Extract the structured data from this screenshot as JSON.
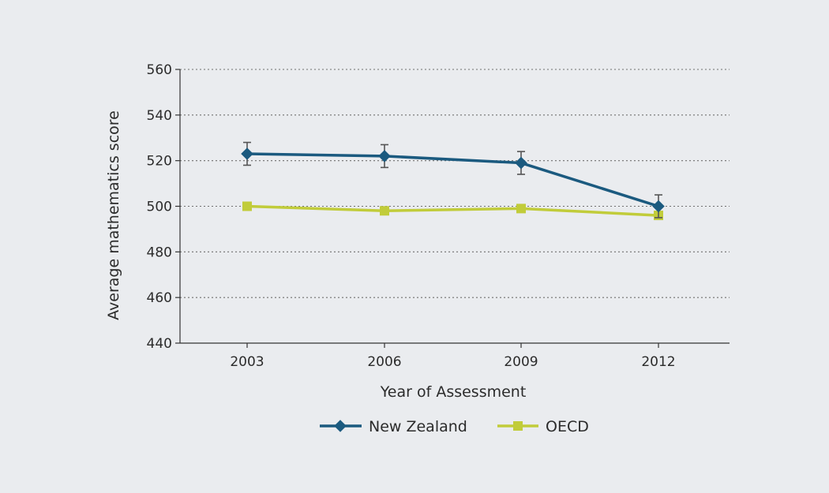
{
  "chart_data": {
    "type": "line",
    "title": "",
    "xlabel": "Year of Assessment",
    "ylabel": "Average mathematics score",
    "categories": [
      "2003",
      "2006",
      "2009",
      "2012"
    ],
    "ylim": [
      440,
      560
    ],
    "yticks": [
      "440",
      "460",
      "480",
      "500",
      "520",
      "540",
      "560"
    ],
    "grid": "horizontal dotted",
    "legend_position": "bottom",
    "series": [
      {
        "name": "New Zealand",
        "values": [
          523,
          522,
          519,
          500
        ],
        "error_low": [
          518,
          517,
          514,
          495
        ],
        "error_high": [
          528,
          527,
          524,
          505
        ],
        "marker": "diamond",
        "color": "#1b5a7f"
      },
      {
        "name": "OECD",
        "values": [
          500,
          498,
          499,
          496
        ],
        "marker": "square",
        "color": "#c1cc3a"
      }
    ]
  }
}
